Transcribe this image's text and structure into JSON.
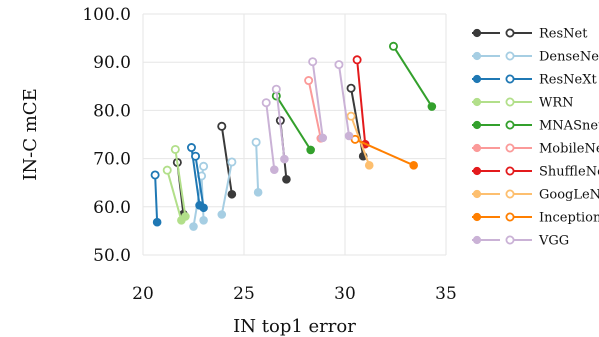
{
  "chart_data": {
    "type": "scatter",
    "xlabel": "IN top1 error",
    "ylabel": "IN-C mCE",
    "xlim": [
      20,
      35
    ],
    "ylim": [
      50,
      100
    ],
    "xticks": [
      20,
      25,
      30,
      35
    ],
    "yticks": [
      50,
      60,
      70,
      80,
      90,
      100
    ],
    "xtick_labels": [
      "20",
      "25",
      "30",
      "35"
    ],
    "ytick_labels": [
      "50.0",
      "60.0",
      "70.0",
      "80.0",
      "90.0",
      "100.0"
    ],
    "grid": true,
    "legend_position": "right",
    "marker_legend": "filled marker and open marker per model family",
    "series": [
      {
        "name": "ResNet",
        "color": "#3a3a3a",
        "segments": [
          {
            "open": [
              23.9,
              76.7
            ],
            "filled": [
              24.4,
              62.6
            ]
          },
          {
            "open": [
              21.7,
              69.2
            ],
            "filled": [
              22.0,
              58.5
            ]
          },
          {
            "open": [
              26.8,
              77.9
            ],
            "filled": [
              27.1,
              65.7
            ]
          },
          {
            "open": [
              30.3,
              84.6
            ],
            "filled": [
              30.9,
              70.5
            ]
          }
        ]
      },
      {
        "name": "DenseNet",
        "color": "#a6cee3",
        "segments": [
          {
            "open": [
              24.4,
              69.3
            ],
            "filled": [
              23.9,
              58.4
            ]
          },
          {
            "open": [
              25.6,
              73.4
            ],
            "filled": [
              25.7,
              63.0
            ]
          },
          {
            "open": [
              23.0,
              68.4
            ],
            "filled": [
              22.5,
              55.9
            ]
          },
          {
            "open": [
              22.9,
              66.4
            ],
            "filled": [
              23.0,
              57.2
            ]
          }
        ]
      },
      {
        "name": "ResNeXt",
        "color": "#1f78b4",
        "segments": [
          {
            "open": [
              20.6,
              66.6
            ],
            "filled": [
              20.7,
              56.8
            ]
          },
          {
            "open": [
              22.4,
              72.3
            ],
            "filled": [
              22.8,
              60.3
            ]
          },
          {
            "open": [
              22.6,
              70.5
            ],
            "filled": [
              23.0,
              59.8
            ]
          }
        ]
      },
      {
        "name": "WRN",
        "color": "#b2df8a",
        "segments": [
          {
            "open": [
              21.6,
              71.9
            ],
            "filled": [
              22.1,
              58.0
            ]
          },
          {
            "open": [
              21.2,
              67.6
            ],
            "filled": [
              21.9,
              57.2
            ]
          }
        ]
      },
      {
        "name": "MNASnet",
        "color": "#33a02c",
        "segments": [
          {
            "open": [
              26.6,
              83.0
            ],
            "filled": [
              28.3,
              71.8
            ]
          },
          {
            "open": [
              32.4,
              93.3
            ],
            "filled": [
              34.3,
              80.8
            ]
          }
        ]
      },
      {
        "name": "MobileNet",
        "color": "#fb9a99",
        "segments": [
          {
            "open": [
              28.2,
              86.2
            ],
            "filled": [
              28.8,
              74.2
            ]
          }
        ]
      },
      {
        "name": "ShuffleNet",
        "color": "#e31a1c",
        "segments": [
          {
            "open": [
              30.6,
              90.5
            ],
            "filled": [
              31.0,
              73.0
            ]
          }
        ]
      },
      {
        "name": "GoogLeNet",
        "color": "#fdbf6f",
        "segments": [
          {
            "open": [
              30.3,
              78.8
            ],
            "filled": [
              31.2,
              68.6
            ]
          }
        ]
      },
      {
        "name": "Inception",
        "color": "#ff7f00",
        "segments": [
          {
            "open": [
              30.5,
              74.0
            ],
            "filled": [
              33.4,
              68.6
            ]
          }
        ]
      },
      {
        "name": "VGG",
        "color": "#cab2d6",
        "segments": [
          {
            "open": [
              26.1,
              81.6
            ],
            "filled": [
              26.5,
              67.7
            ]
          },
          {
            "open": [
              26.6,
              84.4
            ],
            "filled": [
              27.0,
              69.9
            ]
          },
          {
            "open": [
              28.4,
              90.1
            ],
            "filled": [
              28.9,
              74.3
            ]
          },
          {
            "open": [
              29.7,
              89.5
            ],
            "filled": [
              30.2,
              74.7
            ]
          }
        ]
      }
    ]
  }
}
